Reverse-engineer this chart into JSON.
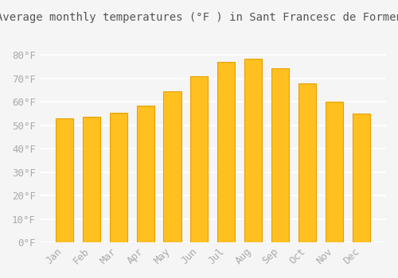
{
  "title": "Average monthly temperatures (°F ) in Sant Francesc de Formentera",
  "months": [
    "Jan",
    "Feb",
    "Mar",
    "Apr",
    "May",
    "Jun",
    "Jul",
    "Aug",
    "Sep",
    "Oct",
    "Nov",
    "Dec"
  ],
  "values": [
    53,
    53.5,
    55.5,
    58.5,
    64.5,
    71,
    77,
    78.5,
    74.5,
    68,
    60,
    55
  ],
  "bar_color_main": "#FFC020",
  "bar_color_edge": "#E8A000",
  "background_color": "#F5F5F5",
  "plot_bg_color": "#F5F5F5",
  "grid_color": "#FFFFFF",
  "text_color": "#AAAAAA",
  "title_color": "#555555",
  "ylim": [
    0,
    90
  ],
  "yticks": [
    0,
    10,
    20,
    30,
    40,
    50,
    60,
    70,
    80
  ],
  "title_fontsize": 10,
  "tick_fontsize": 9
}
